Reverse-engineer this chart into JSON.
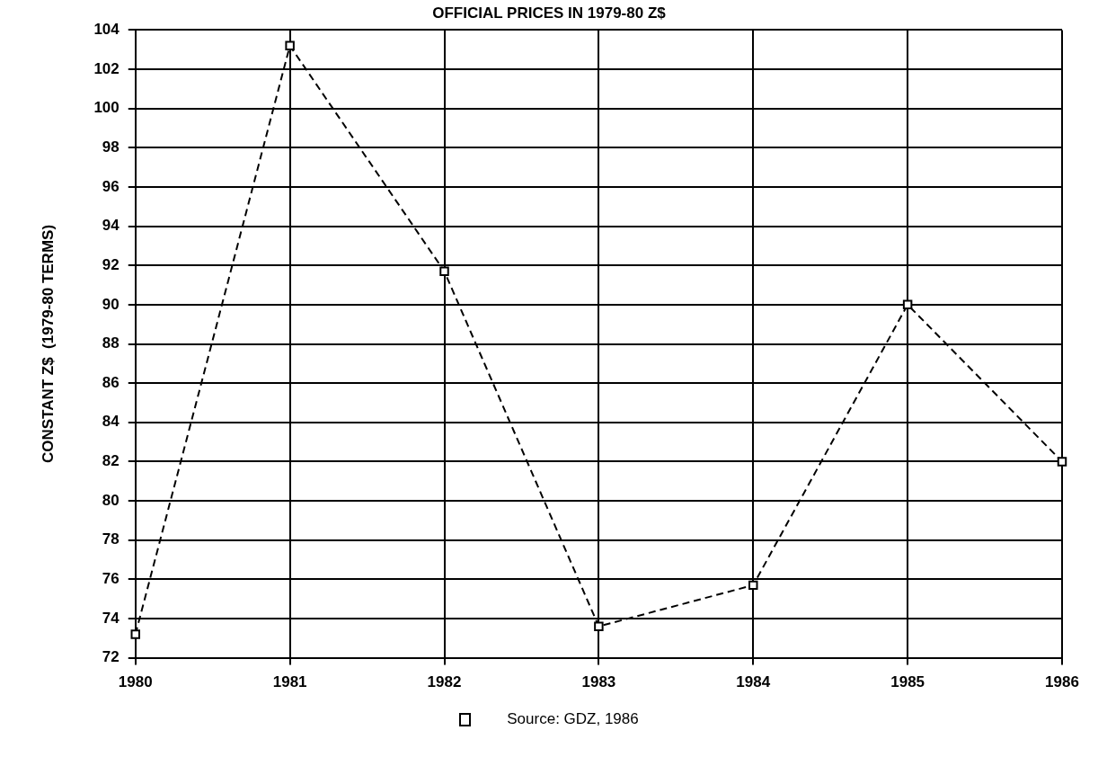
{
  "chart_data": {
    "type": "line",
    "title": "OFFICIAL PRICES IN 1979-80 Z$",
    "ylabel": "CONSTANT Z$  (1979-80 TERMS)",
    "categories": [
      "1980",
      "1981",
      "1982",
      "1983",
      "1984",
      "1985",
      "1986"
    ],
    "series": [
      {
        "color": "#000000",
        "values": [
          73.2,
          103.2,
          91.7,
          73.6,
          75.7,
          90,
          82
        ]
      }
    ],
    "ylim": [
      72,
      104
    ],
    "yticks": [
      72,
      74,
      76,
      78,
      80,
      82,
      84,
      86,
      88,
      90,
      92,
      94,
      96,
      98,
      100,
      102,
      104
    ],
    "grid": true,
    "legend": false,
    "marker": "square",
    "line_style": "dashed",
    "annotations": [
      "Source:  GDZ, 1986"
    ]
  }
}
